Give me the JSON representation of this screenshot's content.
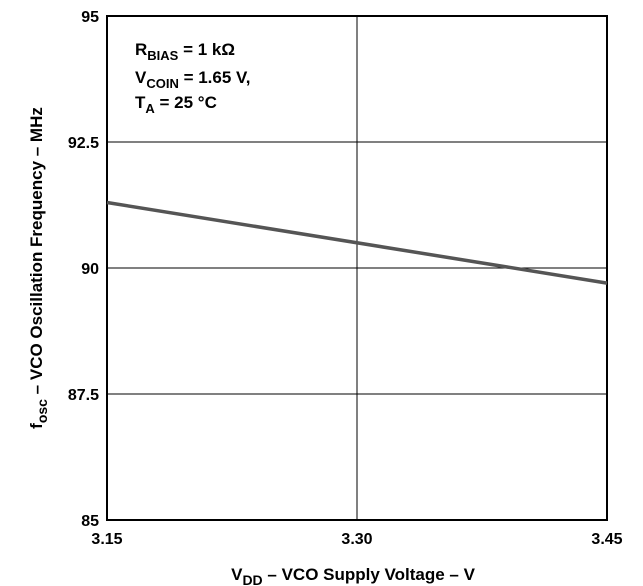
{
  "chart_data": {
    "type": "line",
    "title": "",
    "xlabel": {
      "main": "V",
      "sub": "DD",
      "rest": " – VCO Supply Voltage – V"
    },
    "ylabel": {
      "main": "f",
      "sub": "osc",
      "rest": " – VCO Oscillation Frequency – MHz"
    },
    "xlim": [
      3.15,
      3.45
    ],
    "ylim": [
      85,
      95
    ],
    "x_ticks": [
      "3.15",
      "3.30",
      "3.45"
    ],
    "y_ticks": [
      "85",
      "87.5",
      "90",
      "92.5",
      "95"
    ],
    "grid": true,
    "series": [
      {
        "x": [
          3.15,
          3.45
        ],
        "y": [
          91.3,
          89.7
        ],
        "color": "#555555"
      }
    ],
    "annotations": [
      {
        "main": "R",
        "sub": "BIAS",
        "rest": " = 1 kΩ"
      },
      {
        "main": "V",
        "sub": "COIN",
        "rest": " = 1.65 V,"
      },
      {
        "main": "T",
        "sub": "A",
        "rest": " = 25 °C"
      }
    ]
  }
}
